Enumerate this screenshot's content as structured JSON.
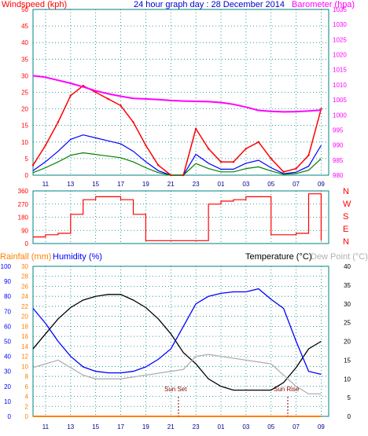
{
  "header": {
    "windspeed": "Windspeed (kph)",
    "title": "24 hour graph day : 28 December 2014",
    "barometer": "Barometer (hpa)"
  },
  "lower_header": {
    "rainfall": "Rainfall (mm)",
    "humidity": "Humidity (%)",
    "temperature": "Temperature (°C)",
    "dewpoint": "Dew Point (°C)"
  },
  "annotations": {
    "sunset": "Sun Set",
    "sunrise": "Sun Rise"
  },
  "x_ticks": [
    "11",
    "13",
    "15",
    "17",
    "19",
    "21",
    "23",
    "01",
    "03",
    "05",
    "07",
    "09"
  ],
  "colors": {
    "gust": "#ff0000",
    "avg": "#0000ff",
    "min": "#008000",
    "baro": "#ff00ff",
    "dir": "#ff0000",
    "temp": "#000000",
    "hum": "#0000ff",
    "dew": "#b0b0b0",
    "rain": "#ff8000",
    "title": "#0000cd",
    "grid": "#008080"
  },
  "chart_data": [
    {
      "type": "line",
      "title": "24 hour graph day : 28 December 2014",
      "ylabel": "Windspeed (kph)",
      "y2label": "Barometer (hpa)",
      "ylim": [
        0,
        50
      ],
      "yticks": [
        "0",
        "5",
        "10",
        "15",
        "20",
        "25",
        "30",
        "35",
        "40",
        "45",
        "50"
      ],
      "y2lim": [
        980,
        1035
      ],
      "y2ticks": [
        "980",
        "985",
        "990",
        "995",
        "1000",
        "1005",
        "1010",
        "1015",
        "1020",
        "1025",
        "1030",
        "1035"
      ],
      "x_hours": [
        10,
        11,
        12,
        13,
        14,
        15,
        16,
        17,
        18,
        19,
        20,
        21,
        22,
        23,
        24,
        25,
        26,
        27,
        28,
        29,
        30,
        31,
        32,
        33
      ],
      "series": [
        {
          "name": "Barometer (hpa)",
          "axis": "right",
          "values": [
            1013,
            1012.5,
            1011.5,
            1010.5,
            1009.3,
            1008,
            1007,
            1006.2,
            1005.5,
            1005.3,
            1005.1,
            1004.8,
            1004.6,
            1004.5,
            1004.4,
            1004.1,
            1003.5,
            1002.6,
            1001.5,
            1001.2,
            1001.0,
            1001.1,
            1001.3,
            1001.6
          ]
        },
        {
          "name": "Windspeed (kph)",
          "axis": "left",
          "values": [
            3,
            9,
            16,
            24,
            27,
            25,
            23,
            21,
            16,
            9,
            3,
            0,
            0,
            14,
            8,
            4,
            4,
            8,
            10,
            5,
            1,
            2,
            6,
            20
          ]
        }
      ]
    },
    {
      "type": "line",
      "ylabel": "Wind direction",
      "ylim": [
        0,
        360
      ],
      "yticks": [
        "0",
        "90",
        "180",
        "270",
        "360"
      ],
      "compass": [
        "N",
        "W",
        "S",
        "E",
        "N"
      ],
      "x_hours": [
        10,
        11,
        12,
        13,
        14,
        15,
        16,
        17,
        18,
        19,
        20,
        21,
        22,
        23,
        24,
        25,
        26,
        27,
        28,
        29,
        30,
        31,
        32,
        33
      ],
      "values": [
        45,
        60,
        70,
        200,
        300,
        320,
        320,
        300,
        200,
        20,
        20,
        20,
        20,
        20,
        270,
        290,
        300,
        320,
        320,
        60,
        60,
        70,
        340,
        20
      ]
    },
    {
      "type": "line",
      "ylabel": "Rainfall (mm) / Humidity (%)",
      "y2label": "Temperature (°C) / Dew Point (°C)",
      "humidity_ylim": [
        0,
        100
      ],
      "humidity_ticks": [
        "0",
        "10",
        "20",
        "30",
        "40",
        "50",
        "60",
        "70",
        "80",
        "90",
        "100"
      ],
      "rain_ylim": [
        0,
        30
      ],
      "rain_ticks": [
        "0",
        "2",
        "4",
        "6",
        "8",
        "10",
        "12",
        "14",
        "16",
        "18",
        "20",
        "22",
        "24",
        "26",
        "28",
        "30"
      ],
      "temp_ylim": [
        0,
        40
      ],
      "temp_ticks": [
        "0",
        "5",
        "10",
        "15",
        "20",
        "25",
        "30",
        "35",
        "40"
      ],
      "x_hours": [
        10,
        11,
        12,
        13,
        14,
        15,
        16,
        17,
        18,
        19,
        20,
        21,
        22,
        23,
        24,
        25,
        26,
        27,
        28,
        29,
        30,
        31,
        32,
        33
      ],
      "series": [
        {
          "name": "Temperature (°C)",
          "axis": "right",
          "values": [
            18,
            22,
            26,
            29,
            31,
            32,
            32.5,
            32.5,
            31,
            29,
            26,
            22,
            17,
            14,
            10,
            8,
            7,
            7,
            7,
            7,
            9,
            13,
            18,
            20
          ]
        },
        {
          "name": "Humidity (%)",
          "axis": "left",
          "values": [
            72,
            62,
            50,
            40,
            33,
            30,
            29,
            29,
            30,
            33,
            38,
            45,
            60,
            75,
            80,
            82,
            83,
            83,
            85,
            78,
            72,
            50,
            30,
            28
          ]
        },
        {
          "name": "Dew Point (°C)",
          "axis": "right",
          "values": [
            13,
            14,
            15,
            13,
            11,
            10,
            10,
            10,
            10.5,
            11,
            11.5,
            12,
            12.5,
            16,
            16.5,
            16,
            15.5,
            15,
            14.5,
            14,
            11,
            8,
            6,
            6
          ]
        },
        {
          "name": "Rainfall (mm)",
          "axis": "left",
          "values": [
            0,
            0,
            0,
            0,
            0,
            0,
            0,
            0,
            0,
            0,
            0,
            0,
            0,
            0,
            0,
            0,
            0,
            0,
            0,
            0,
            0,
            0,
            0,
            0
          ]
        }
      ]
    }
  ]
}
